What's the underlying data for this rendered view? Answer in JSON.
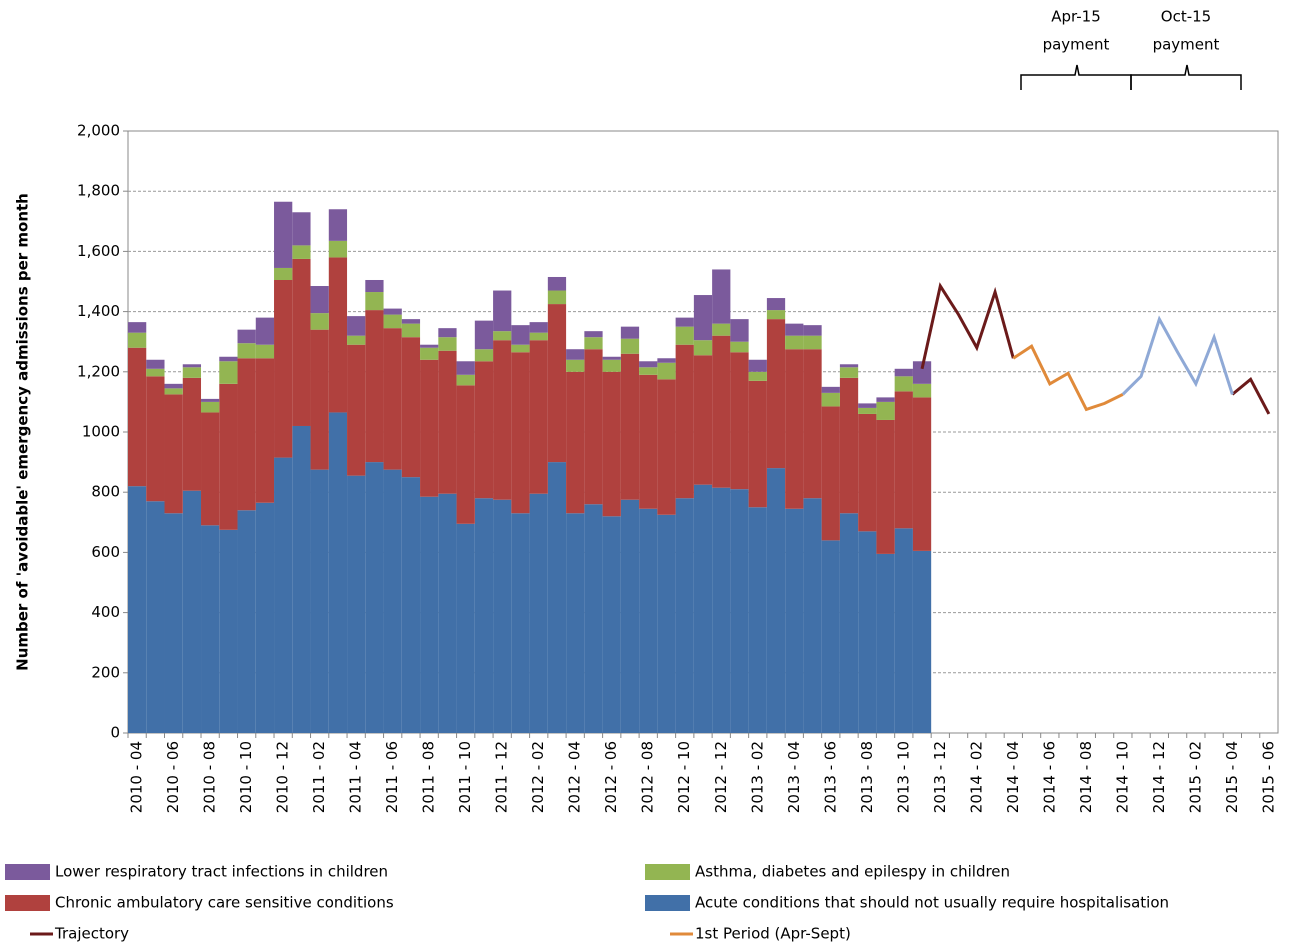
{
  "chart_data": {
    "type": "bar",
    "stacked": true,
    "y_label": "Number of 'avoidable' emergency admissions per month",
    "annotations": [
      {
        "line1": "Apr-15",
        "line2": "payment"
      },
      {
        "line1": "Oct-15",
        "line2": "payment"
      }
    ],
    "categories": [
      "2010 - 04",
      null,
      "2010 - 06",
      null,
      "2010 - 08",
      null,
      "2010 - 10",
      null,
      "2010 - 12",
      null,
      "2011 - 02",
      null,
      "2011 - 04",
      null,
      "2011 - 06",
      null,
      "2011 - 08",
      null,
      "2011 - 10",
      null,
      "2011 - 12",
      null,
      "2012 - 02",
      null,
      "2012 - 04",
      null,
      "2012 - 06",
      null,
      "2012 - 08",
      null,
      "2012 - 10",
      null,
      "2012 - 12",
      null,
      "2013 - 02",
      null,
      "2013 - 04",
      null,
      "2013 - 06",
      null,
      "2013 - 08",
      null,
      "2013 - 10",
      null,
      "2013 - 12",
      null,
      "2014 - 02",
      null,
      "2014 - 04",
      null,
      "2014 - 06",
      null,
      "2014 - 08",
      null,
      "2014 - 10",
      null,
      "2014 - 12",
      null,
      "2015 - 02",
      null,
      "2015 - 04",
      null,
      "2015 - 06"
    ],
    "series": [
      {
        "name": "Acute conditions that should not usually require hospitalisation",
        "color": "#4170a8",
        "values": [
          820,
          770,
          730,
          805,
          690,
          675,
          740,
          765,
          915,
          1020,
          875,
          1065,
          855,
          900,
          875,
          850,
          785,
          795,
          695,
          780,
          775,
          730,
          795,
          900,
          730,
          760,
          720,
          775,
          745,
          725,
          780,
          825,
          815,
          810,
          750,
          880,
          745,
          780,
          640,
          730,
          670,
          595,
          680,
          605,
          null,
          null,
          null,
          null,
          null,
          null,
          null,
          null,
          null,
          null,
          null,
          null,
          null,
          null,
          null,
          null,
          null,
          null,
          null
        ]
      },
      {
        "name": "Chronic ambulatory care sensitive conditions",
        "color": "#b0413e",
        "values": [
          460,
          415,
          395,
          375,
          375,
          485,
          505,
          480,
          590,
          555,
          465,
          515,
          435,
          505,
          470,
          465,
          455,
          475,
          460,
          455,
          530,
          535,
          510,
          525,
          470,
          515,
          480,
          485,
          445,
          450,
          510,
          430,
          505,
          455,
          420,
          495,
          530,
          495,
          445,
          450,
          390,
          445,
          455,
          510,
          null,
          null,
          null,
          null,
          null,
          null,
          null,
          null,
          null,
          null,
          null,
          null,
          null,
          null,
          null,
          null,
          null,
          null,
          null
        ]
      },
      {
        "name": "Asthma, diabetes and epilespy in children",
        "color": "#93b552",
        "values": [
          50,
          25,
          20,
          35,
          35,
          75,
          50,
          45,
          40,
          45,
          55,
          55,
          30,
          60,
          45,
          45,
          40,
          45,
          35,
          40,
          30,
          25,
          25,
          45,
          40,
          40,
          40,
          50,
          25,
          55,
          60,
          50,
          40,
          35,
          30,
          30,
          45,
          45,
          45,
          35,
          20,
          60,
          50,
          45,
          null,
          null,
          null,
          null,
          null,
          null,
          null,
          null,
          null,
          null,
          null,
          null,
          null,
          null,
          null,
          null,
          null,
          null,
          null
        ]
      },
      {
        "name": "Lower respiratory tract infections in children",
        "color": "#7b5a9c",
        "values": [
          35,
          30,
          15,
          10,
          10,
          15,
          45,
          90,
          220,
          110,
          90,
          105,
          65,
          40,
          20,
          15,
          10,
          30,
          45,
          95,
          135,
          65,
          35,
          45,
          35,
          20,
          10,
          40,
          20,
          15,
          30,
          150,
          180,
          75,
          40,
          40,
          40,
          35,
          20,
          10,
          15,
          15,
          25,
          75,
          null,
          null,
          null,
          null,
          null,
          null,
          null,
          null,
          null,
          null,
          null,
          null,
          null,
          null,
          null,
          null,
          null,
          null,
          null
        ]
      },
      {
        "name": "Trajectory",
        "type": "line",
        "color": "#6b1a1a",
        "values": [
          null,
          null,
          null,
          null,
          null,
          null,
          null,
          null,
          null,
          null,
          null,
          null,
          null,
          null,
          null,
          null,
          null,
          null,
          null,
          null,
          null,
          null,
          null,
          null,
          null,
          null,
          null,
          null,
          null,
          null,
          null,
          null,
          null,
          null,
          null,
          null,
          null,
          null,
          null,
          null,
          null,
          null,
          null,
          1210,
          1485,
          1390,
          1280,
          1465,
          1245,
          null,
          null,
          null,
          null,
          null,
          null,
          null,
          null,
          null,
          null,
          null,
          1125,
          1175,
          1060
        ]
      },
      {
        "name": "1st Period (Apr-Sept)",
        "type": "line",
        "color": "#e08a3a",
        "values": [
          null,
          null,
          null,
          null,
          null,
          null,
          null,
          null,
          null,
          null,
          null,
          null,
          null,
          null,
          null,
          null,
          null,
          null,
          null,
          null,
          null,
          null,
          null,
          null,
          null,
          null,
          null,
          null,
          null,
          null,
          null,
          null,
          null,
          null,
          null,
          null,
          null,
          null,
          null,
          null,
          null,
          null,
          null,
          null,
          null,
          null,
          null,
          null,
          1245,
          1285,
          1160,
          1195,
          1075,
          1095,
          1125,
          null,
          null,
          null,
          null,
          null,
          null,
          null,
          null
        ]
      },
      {
        "type": "line",
        "color": "#8fa9d6",
        "values": [
          null,
          null,
          null,
          null,
          null,
          null,
          null,
          null,
          null,
          null,
          null,
          null,
          null,
          null,
          null,
          null,
          null,
          null,
          null,
          null,
          null,
          null,
          null,
          null,
          null,
          null,
          null,
          null,
          null,
          null,
          null,
          null,
          null,
          null,
          null,
          null,
          null,
          null,
          null,
          null,
          null,
          null,
          null,
          null,
          null,
          null,
          null,
          null,
          null,
          null,
          null,
          null,
          null,
          null,
          1125,
          1185,
          1375,
          1265,
          1160,
          1315,
          1125,
          null,
          null
        ]
      }
    ],
    "ylim": [
      0,
      2000
    ],
    "yticks": [
      0,
      200,
      400,
      600,
      800,
      1000,
      {
        "value": 1200,
        "label": "1,200"
      },
      {
        "value": 1400,
        "label": "1,400"
      },
      {
        "value": 1600,
        "label": "1,600"
      },
      {
        "value": 1800,
        "label": "1,800"
      },
      {
        "value": 2000,
        "label": "2,000"
      }
    ],
    "grid": true
  }
}
